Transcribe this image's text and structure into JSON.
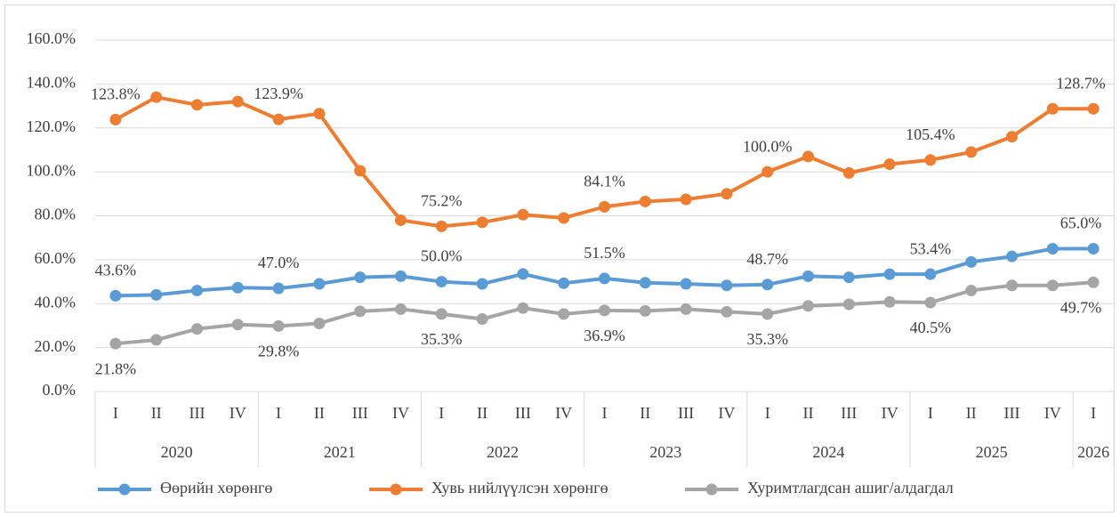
{
  "chart_data": {
    "type": "line",
    "categories": [
      "I",
      "II",
      "III",
      "IV",
      "I",
      "II",
      "III",
      "IV",
      "I",
      "II",
      "III",
      "IV",
      "I",
      "II",
      "III",
      "IV",
      "I",
      "II",
      "III",
      "IV",
      "I",
      "II",
      "III",
      "IV",
      "I"
    ],
    "year_groups": [
      {
        "label": "2020",
        "count": 4
      },
      {
        "label": "2021",
        "count": 4
      },
      {
        "label": "2022",
        "count": 4
      },
      {
        "label": "2023",
        "count": 4
      },
      {
        "label": "2024",
        "count": 4
      },
      {
        "label": "2025",
        "count": 4
      },
      {
        "label": "2026",
        "count": 1
      }
    ],
    "ylim": [
      0,
      160
    ],
    "yticks": [
      {
        "value": 0,
        "label": "0.0%"
      },
      {
        "value": 20,
        "label": "20.0%"
      },
      {
        "value": 40,
        "label": "40.0%"
      },
      {
        "value": 60,
        "label": "60.0%"
      },
      {
        "value": 80,
        "label": "80.0%"
      },
      {
        "value": 100,
        "label": "100.0%"
      },
      {
        "value": 120,
        "label": "120.0%"
      },
      {
        "value": 140,
        "label": "140.0%"
      },
      {
        "value": 160,
        "label": "160.0%"
      }
    ],
    "grid": true,
    "legend": "bottom",
    "series": [
      {
        "name": "Өөрийн хөрөнгө",
        "color": "#5b9bd5",
        "label_position": "above",
        "values": [
          43.6,
          44,
          46,
          47.3,
          47.0,
          49,
          52,
          52.5,
          50.0,
          49,
          53.5,
          49.3,
          51.5,
          49.5,
          49,
          48.3,
          48.7,
          52.5,
          52,
          53.4,
          53.4,
          59,
          61.5,
          65,
          65.0
        ],
        "value_labels": [
          "43.6%",
          null,
          null,
          null,
          "47.0%",
          null,
          null,
          null,
          "50.0%",
          null,
          null,
          null,
          "51.5%",
          null,
          null,
          null,
          "48.7%",
          null,
          null,
          null,
          "53.4%",
          null,
          null,
          null,
          "65.0%"
        ]
      },
      {
        "name": "Хувь нийлүүлсэн хөрөнгө",
        "color": "#ed7d31",
        "label_position": "above",
        "values": [
          123.8,
          134,
          130.5,
          132,
          123.9,
          126.5,
          100.5,
          78,
          75.2,
          77,
          80.5,
          79,
          84.1,
          86.5,
          87.5,
          90,
          100.0,
          107,
          99.5,
          103.5,
          105.4,
          109,
          116,
          128.7,
          128.7
        ],
        "value_labels": [
          "123.8%",
          null,
          null,
          null,
          "123.9%",
          null,
          null,
          null,
          "75.2%",
          null,
          null,
          null,
          "84.1%",
          null,
          null,
          null,
          "100.0%",
          null,
          null,
          null,
          "105.4%",
          null,
          null,
          null,
          "128.7%"
        ]
      },
      {
        "name": "Хуримтлагдсан ашиг/алдагдал",
        "color": "#a5a5a5",
        "label_position": "below",
        "values": [
          21.8,
          23.5,
          28.5,
          30.5,
          29.8,
          31,
          36.5,
          37.5,
          35.3,
          33,
          38,
          35.3,
          36.9,
          36.7,
          37.5,
          36.3,
          35.3,
          39,
          39.7,
          40.8,
          40.5,
          46,
          48.3,
          48.3,
          49.7
        ],
        "value_labels": [
          "21.8%",
          null,
          null,
          null,
          "29.8%",
          null,
          null,
          null,
          "35.3%",
          null,
          null,
          null,
          "36.9%",
          null,
          null,
          null,
          "35.3%",
          null,
          null,
          null,
          "40.5%",
          null,
          null,
          null,
          "49.7%"
        ]
      }
    ]
  }
}
